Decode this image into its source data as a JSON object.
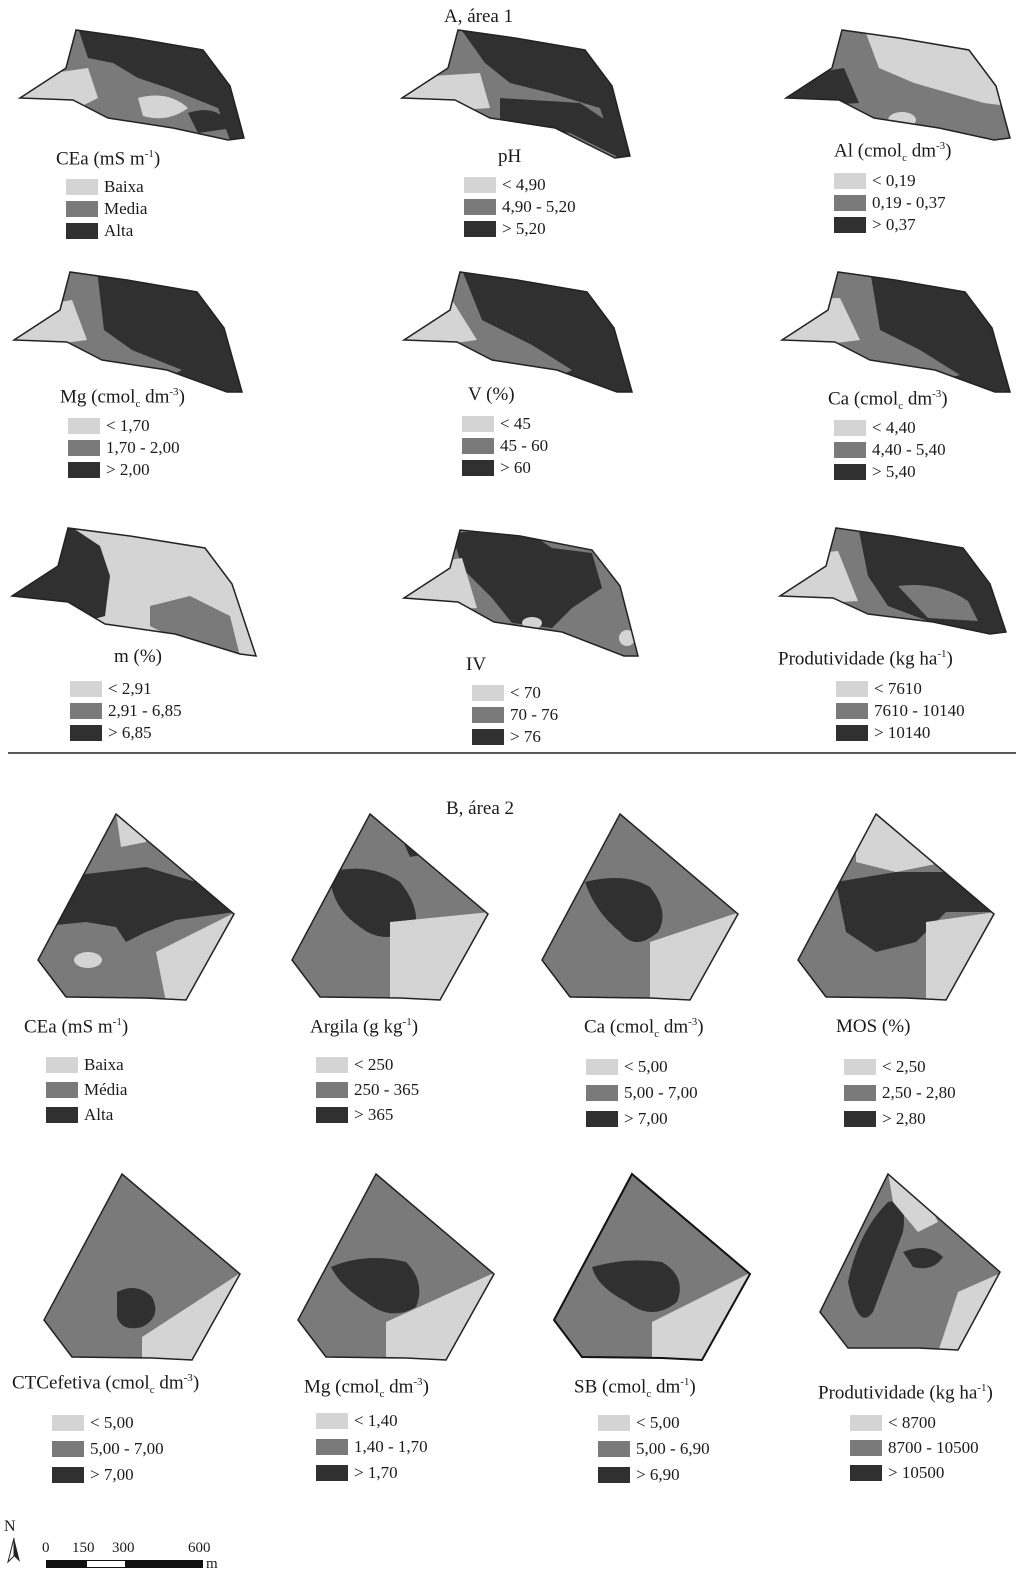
{
  "sections": {
    "a_title": "A, área 1",
    "b_title": "B, área 2"
  },
  "colors": {
    "light": "#d4d4d4",
    "medium": "#7a7a7a",
    "dark": "#303030",
    "outline": "#222222"
  },
  "area1": {
    "maps": [
      {
        "id": "a1-cea",
        "title_main": "CEa (mS m",
        "title_sup": "-1",
        "title_end": ")",
        "legend": [
          "Baixa",
          "Media",
          "Alta"
        ]
      },
      {
        "id": "a1-ph",
        "title_main": "pH",
        "legend": [
          "< 4,90",
          "4,90 - 5,20",
          "> 5,20"
        ]
      },
      {
        "id": "a1-al",
        "title_main": "Al (cmol",
        "title_sub": "c",
        "title_mid": " dm",
        "title_sup": "-3",
        "title_end": ")",
        "legend": [
          "< 0,19",
          "0,19 - 0,37",
          "> 0,37"
        ]
      },
      {
        "id": "a1-mg",
        "title_main": "Mg (cmol",
        "title_sub": "c",
        "title_mid": " dm",
        "title_sup": "-3",
        "title_end": ")",
        "legend": [
          "< 1,70",
          "1,70 - 2,00",
          "> 2,00"
        ]
      },
      {
        "id": "a1-v",
        "title_main": "V (%)",
        "legend": [
          "< 45",
          "45 - 60",
          "> 60"
        ]
      },
      {
        "id": "a1-ca",
        "title_main": "Ca (cmol",
        "title_sub": "c",
        "title_mid": " dm",
        "title_sup": "-3",
        "title_end": ")",
        "legend": [
          "< 4,40",
          "4,40 - 5,40",
          "> 5,40"
        ]
      },
      {
        "id": "a1-m",
        "title_main": "m (%)",
        "legend": [
          "< 2,91",
          "2,91 - 6,85",
          "> 6,85"
        ]
      },
      {
        "id": "a1-iv",
        "title_main": "IV",
        "legend": [
          "< 70",
          "70 - 76",
          "> 76"
        ]
      },
      {
        "id": "a1-prod",
        "title_main": "Produtividade (kg ha",
        "title_sup": "-1",
        "title_end": ")",
        "legend": [
          "< 7610",
          "7610 - 10140",
          "> 10140"
        ]
      }
    ]
  },
  "area2": {
    "maps": [
      {
        "id": "a2-cea",
        "title_main": "CEa (mS m",
        "title_sup": "-1",
        "title_end": ")",
        "legend": [
          "Baixa",
          "Média",
          "Alta"
        ]
      },
      {
        "id": "a2-argila",
        "title_main": "Argila (g kg",
        "title_sup": "-1",
        "title_end": ")",
        "legend": [
          "< 250",
          "250 - 365",
          "> 365"
        ]
      },
      {
        "id": "a2-ca",
        "title_main": "Ca (cmol",
        "title_sub": "c",
        "title_mid": " dm",
        "title_sup": "-3",
        "title_end": ")",
        "legend": [
          "< 5,00",
          "5,00 - 7,00",
          "> 7,00"
        ]
      },
      {
        "id": "a2-mos",
        "title_main": "MOS (%)",
        "legend": [
          "< 2,50",
          "2,50 - 2,80",
          "> 2,80"
        ]
      },
      {
        "id": "a2-ctc",
        "title_main": "CTCefetiva (cmol",
        "title_sub": "c",
        "title_mid": " dm",
        "title_sup": "-3",
        "title_end": ")",
        "legend": [
          "< 5,00",
          "5,00 - 7,00",
          "> 7,00"
        ]
      },
      {
        "id": "a2-mg",
        "title_main": "Mg (cmol",
        "title_sub": "c",
        "title_mid": " dm",
        "title_sup": "-3",
        "title_end": ")",
        "legend": [
          "< 1,40",
          "1,40 - 1,70",
          "> 1,70"
        ]
      },
      {
        "id": "a2-sb",
        "title_main": "SB (cmol",
        "title_sub": "c",
        "title_mid": " dm",
        "title_sup": "-1",
        "title_end": ")",
        "legend": [
          "< 5,00",
          "5,00 - 6,90",
          "> 6,90"
        ]
      },
      {
        "id": "a2-prod",
        "title_main": "Produtividade (kg ha",
        "title_sup": "-1",
        "title_end": ")",
        "legend": [
          "< 8700",
          "8700 - 10500",
          "> 10500"
        ]
      }
    ]
  },
  "scale": {
    "north": "N",
    "ticks": [
      "0",
      "150",
      "300",
      "600"
    ],
    "unit": "m"
  }
}
